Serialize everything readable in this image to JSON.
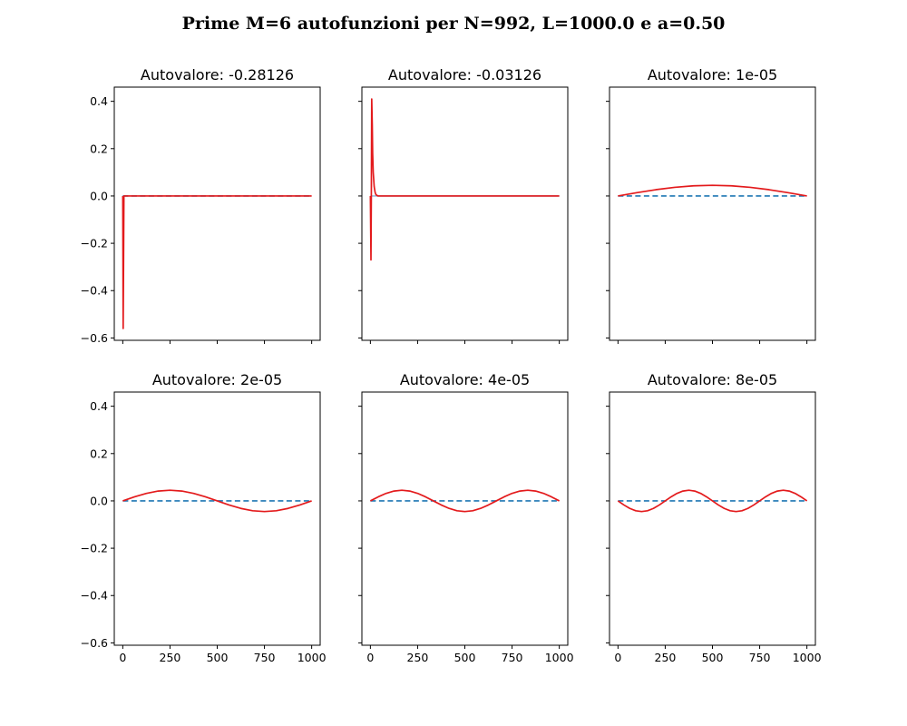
{
  "figure": {
    "title": "Prime M=6 autofunzioni per N=992, L=1000.0 e a=0.50"
  },
  "colors": {
    "eigenfunction": "#e31a1c",
    "baseline": "#1f77b4",
    "baseline_faint": "#9bbcd8"
  },
  "chart_data": [
    {
      "type": "line",
      "title": "Autovalore: -0.28126",
      "xlim": [
        -45,
        1045
      ],
      "ylim": [
        -0.61,
        0.46
      ],
      "xticks": [
        0,
        250,
        500,
        750,
        1000
      ],
      "xtick_labels": [
        "0",
        "250",
        "500",
        "750",
        "1000"
      ],
      "show_xtick_labels": false,
      "yticks": [
        -0.6,
        -0.4,
        -0.2,
        0.0,
        0.2,
        0.4
      ],
      "ytick_labels": [
        "−0.6",
        "−0.4",
        "−0.2",
        "0.0",
        "0.2",
        "0.4"
      ],
      "show_ytick_labels": true,
      "series": [
        {
          "style": "dashed",
          "color": "#1f77b4",
          "x": [
            0,
            1000
          ],
          "y": [
            0,
            0
          ]
        },
        {
          "style": "solid",
          "color": "#e31a1c",
          "x": [
            0,
            2,
            4,
            6,
            8,
            1000
          ],
          "y": [
            0,
            -0.56,
            -0.3,
            0,
            0,
            0
          ]
        }
      ]
    },
    {
      "type": "line",
      "title": "Autovalore: -0.03126",
      "xlim": [
        -45,
        1045
      ],
      "ylim": [
        -0.61,
        0.46
      ],
      "xticks": [
        0,
        250,
        500,
        750,
        1000
      ],
      "xtick_labels": [
        "0",
        "250",
        "500",
        "750",
        "1000"
      ],
      "show_xtick_labels": false,
      "yticks": [
        -0.6,
        -0.4,
        -0.2,
        0.0,
        0.2,
        0.4
      ],
      "ytick_labels": [
        "−0.6",
        "−0.4",
        "−0.2",
        "0.0",
        "0.2",
        "0.4"
      ],
      "show_ytick_labels": false,
      "series": [
        {
          "style": "solid",
          "color": "#9bbcd8",
          "x": [
            0,
            1000
          ],
          "y": [
            0,
            0
          ]
        },
        {
          "style": "solid",
          "color": "#e31a1c",
          "x": [
            0,
            3,
            5,
            7,
            10,
            12,
            15,
            20,
            25,
            30,
            40,
            1000
          ],
          "y": [
            0,
            -0.27,
            0.0,
            0.41,
            0.3,
            0.18,
            0.1,
            0.04,
            0.015,
            0.005,
            0,
            0
          ]
        }
      ]
    },
    {
      "type": "line",
      "title": "Autovalore: 1e-05",
      "xlim": [
        -45,
        1045
      ],
      "ylim": [
        -0.61,
        0.46
      ],
      "xticks": [
        0,
        250,
        500,
        750,
        1000
      ],
      "xtick_labels": [
        "0",
        "250",
        "500",
        "750",
        "1000"
      ],
      "show_xtick_labels": false,
      "yticks": [
        -0.6,
        -0.4,
        -0.2,
        0.0,
        0.2,
        0.4
      ],
      "ytick_labels": [
        "−0.6",
        "−0.4",
        "−0.2",
        "0.0",
        "0.2",
        "0.4"
      ],
      "show_ytick_labels": false,
      "series": [
        {
          "style": "dashed",
          "color": "#1f77b4",
          "x": [
            0,
            1000
          ],
          "y": [
            0,
            0
          ]
        },
        {
          "style": "solid",
          "color": "#e31a1c",
          "x": [
            0,
            100,
            200,
            300,
            400,
            500,
            600,
            700,
            800,
            900,
            1000
          ],
          "y": [
            0,
            0.0139,
            0.0265,
            0.0365,
            0.0428,
            0.045,
            0.0428,
            0.0365,
            0.0265,
            0.0139,
            0
          ]
        }
      ]
    },
    {
      "type": "line",
      "title": "Autovalore: 2e-05",
      "xlim": [
        -45,
        1045
      ],
      "ylim": [
        -0.61,
        0.46
      ],
      "xticks": [
        0,
        250,
        500,
        750,
        1000
      ],
      "xtick_labels": [
        "0",
        "250",
        "500",
        "750",
        "1000"
      ],
      "show_xtick_labels": true,
      "yticks": [
        -0.6,
        -0.4,
        -0.2,
        0.0,
        0.2,
        0.4
      ],
      "ytick_labels": [
        "−0.6",
        "−0.4",
        "−0.2",
        "0.0",
        "0.2",
        "0.4"
      ],
      "show_ytick_labels": true,
      "series": [
        {
          "style": "dashed",
          "color": "#1f77b4",
          "x": [
            0,
            1000
          ],
          "y": [
            0,
            0
          ]
        },
        {
          "style": "solid",
          "color": "#e31a1c",
          "x": [
            0,
            62.5,
            125,
            187.5,
            250,
            312.5,
            375,
            437.5,
            500,
            562.5,
            625,
            687.5,
            750,
            812.5,
            875,
            937.5,
            1000
          ],
          "y": [
            0,
            0.0172,
            0.0318,
            0.0416,
            0.045,
            0.0416,
            0.0318,
            0.0172,
            0,
            -0.0172,
            -0.0318,
            -0.0416,
            -0.045,
            -0.0416,
            -0.0318,
            -0.0172,
            0
          ]
        }
      ]
    },
    {
      "type": "line",
      "title": "Autovalore: 4e-05",
      "xlim": [
        -45,
        1045
      ],
      "ylim": [
        -0.61,
        0.46
      ],
      "xticks": [
        0,
        250,
        500,
        750,
        1000
      ],
      "xtick_labels": [
        "0",
        "250",
        "500",
        "750",
        "1000"
      ],
      "show_xtick_labels": true,
      "yticks": [
        -0.6,
        -0.4,
        -0.2,
        0.0,
        0.2,
        0.4
      ],
      "ytick_labels": [
        "−0.6",
        "−0.4",
        "−0.2",
        "0.0",
        "0.2",
        "0.4"
      ],
      "show_ytick_labels": false,
      "series": [
        {
          "style": "dashed",
          "color": "#1f77b4",
          "x": [
            0,
            1000
          ],
          "y": [
            0,
            0
          ]
        },
        {
          "style": "solid",
          "color": "#e31a1c",
          "x": [
            0,
            41.7,
            83.3,
            125,
            166.7,
            208.3,
            250,
            291.7,
            333.3,
            375,
            416.7,
            458.3,
            500,
            541.7,
            583.3,
            625,
            666.7,
            708.3,
            750,
            791.7,
            833.3,
            875,
            916.7,
            958.3,
            1000
          ],
          "y": [
            0,
            0.0172,
            0.0318,
            0.0416,
            0.045,
            0.0416,
            0.0318,
            0.0172,
            0,
            -0.0172,
            -0.0318,
            -0.0416,
            -0.045,
            -0.0416,
            -0.0318,
            -0.0172,
            0,
            0.0172,
            0.0318,
            0.0416,
            0.045,
            0.0416,
            0.0318,
            0.0172,
            0
          ]
        }
      ]
    },
    {
      "type": "line",
      "title": "Autovalore: 8e-05",
      "xlim": [
        -45,
        1045
      ],
      "ylim": [
        -0.61,
        0.46
      ],
      "xticks": [
        0,
        250,
        500,
        750,
        1000
      ],
      "xtick_labels": [
        "0",
        "250",
        "500",
        "750",
        "1000"
      ],
      "show_xtick_labels": true,
      "yticks": [
        -0.6,
        -0.4,
        -0.2,
        0.0,
        0.2,
        0.4
      ],
      "ytick_labels": [
        "−0.6",
        "−0.4",
        "−0.2",
        "0.0",
        "0.2",
        "0.4"
      ],
      "show_ytick_labels": false,
      "series": [
        {
          "style": "dashed",
          "color": "#1f77b4",
          "x": [
            0,
            1000
          ],
          "y": [
            0,
            0
          ]
        },
        {
          "style": "solid",
          "color": "#e31a1c",
          "x": [
            0,
            31.25,
            62.5,
            93.75,
            125,
            156.25,
            187.5,
            218.75,
            250,
            281.25,
            312.5,
            343.75,
            375,
            406.25,
            437.5,
            468.75,
            500,
            531.25,
            562.5,
            593.75,
            625,
            656.25,
            687.5,
            718.75,
            750,
            781.25,
            812.5,
            843.75,
            875,
            906.25,
            937.5,
            968.75,
            1000
          ],
          "y": [
            0,
            -0.0172,
            -0.0318,
            -0.0416,
            -0.045,
            -0.0416,
            -0.0318,
            -0.0172,
            0,
            0.0172,
            0.0318,
            0.0416,
            0.045,
            0.0416,
            0.0318,
            0.0172,
            0,
            -0.0172,
            -0.0318,
            -0.0416,
            -0.045,
            -0.0416,
            -0.0318,
            -0.0172,
            0,
            0.0172,
            0.0318,
            0.0416,
            0.045,
            0.0416,
            0.0318,
            0.0172,
            0
          ]
        }
      ]
    }
  ]
}
